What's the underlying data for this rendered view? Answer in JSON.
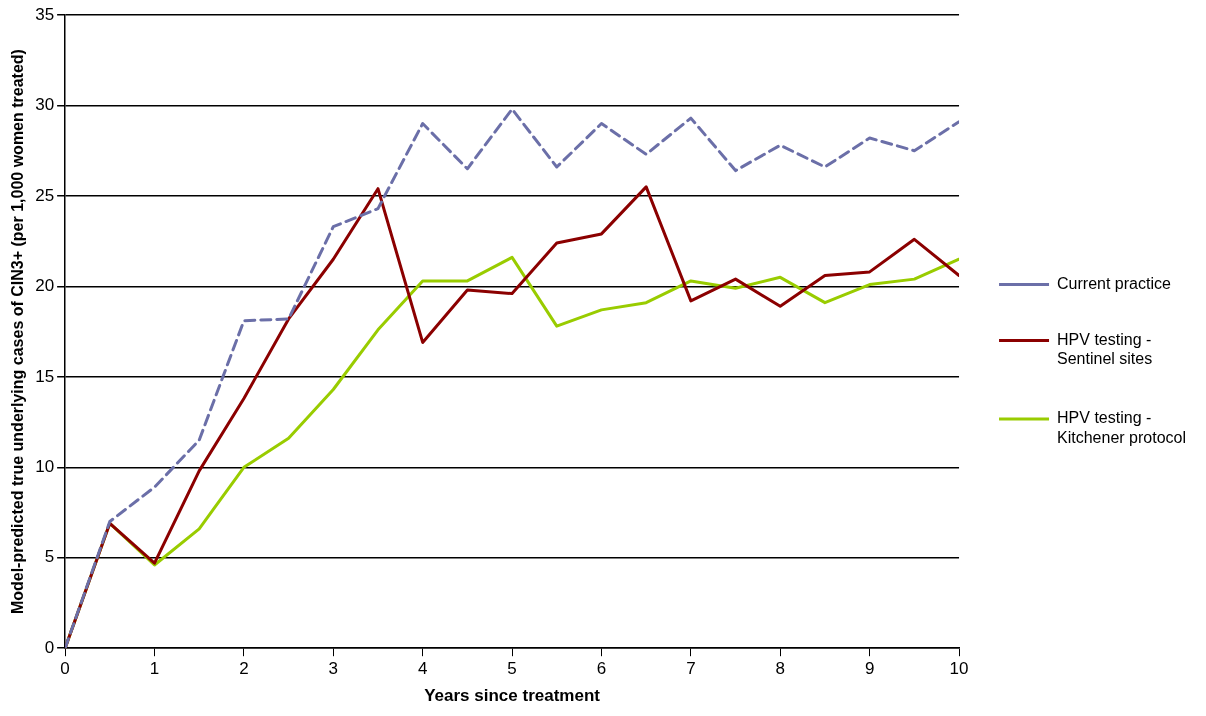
{
  "chart_data": {
    "type": "line",
    "xlabel": "Years since treatment",
    "ylabel": "Model-predicted true underlying cases of CIN3+ (per 1,000 women treated)",
    "x": [
      0,
      0.5,
      1,
      1.5,
      2,
      2.5,
      3,
      3.5,
      4,
      4.5,
      5,
      5.5,
      6,
      6.5,
      7,
      7.5,
      8,
      8.5,
      9,
      9.5,
      10
    ],
    "series": [
      {
        "name": "Current practice",
        "color": "#6b6fa8",
        "line_style": "dashed",
        "values": [
          0,
          7.0,
          8.9,
          11.5,
          18.1,
          18.2,
          23.3,
          24.3,
          29.0,
          26.5,
          29.8,
          26.6,
          29.0,
          27.3,
          29.3,
          26.4,
          27.8,
          26.6,
          28.2,
          27.5,
          29.1
        ]
      },
      {
        "name": "HPV testing - Sentinel sites",
        "color": "#8b0000",
        "line_style": "solid",
        "values": [
          0,
          6.9,
          4.7,
          9.8,
          13.8,
          18.2,
          21.5,
          25.4,
          16.9,
          19.8,
          19.6,
          22.4,
          22.9,
          25.5,
          19.2,
          20.4,
          18.9,
          20.6,
          20.8,
          22.6,
          20.6
        ]
      },
      {
        "name": "HPV testing - Kitchener protocol",
        "color": "#99cc00",
        "line_style": "solid",
        "values": [
          0,
          6.9,
          4.6,
          6.6,
          10.0,
          11.6,
          14.3,
          17.6,
          20.3,
          20.3,
          21.6,
          17.8,
          18.7,
          19.1,
          20.3,
          19.9,
          20.5,
          19.1,
          20.1,
          20.4,
          21.5
        ]
      }
    ],
    "xlim": [
      0,
      10
    ],
    "xticks": [
      0,
      1,
      2,
      3,
      4,
      5,
      6,
      7,
      8,
      9,
      10
    ],
    "ylim": [
      0,
      35
    ],
    "yticks": [
      0,
      5,
      10,
      15,
      20,
      25,
      30,
      35
    ],
    "grid": "y",
    "legend": "right",
    "marker": "none"
  }
}
